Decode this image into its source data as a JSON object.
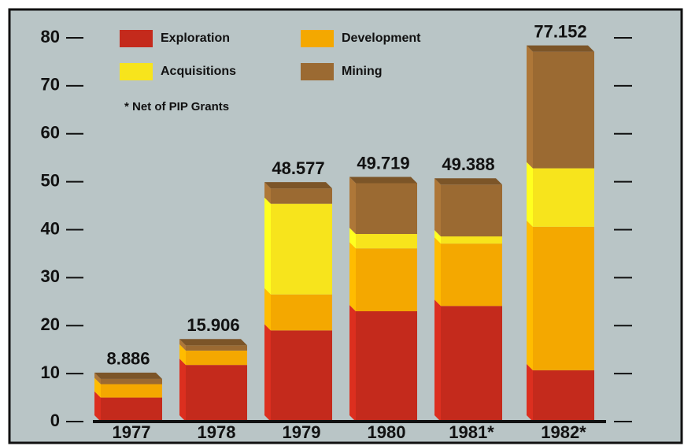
{
  "chart_data": {
    "type": "stacked-bar",
    "categories": [
      "1977",
      "1978",
      "1979",
      "1980",
      "1981*",
      "1982*"
    ],
    "series": [
      {
        "name": "Exploration",
        "color": "#c42a1c",
        "values": [
          5.0,
          11.8,
          19.0,
          23.0,
          24.1,
          10.7
        ]
      },
      {
        "name": "Development",
        "color": "#f4a800",
        "values": [
          2.8,
          3.0,
          7.5,
          13.1,
          13.0,
          29.9
        ]
      },
      {
        "name": "Acquisitions",
        "color": "#f7e41c",
        "values": [
          0,
          0,
          18.9,
          3.0,
          1.5,
          12.2
        ]
      },
      {
        "name": "Mining",
        "color": "#9b6a32",
        "values": [
          1.1,
          1.1,
          3.2,
          10.6,
          10.8,
          24.3
        ]
      }
    ],
    "totals": [
      8.886,
      15.906,
      48.577,
      49.719,
      49.388,
      77.152
    ],
    "note": "* Net of PIP Grants",
    "ylim": [
      0,
      80
    ],
    "yticks": [
      0,
      10,
      20,
      30,
      40,
      50,
      60,
      70,
      80
    ]
  }
}
